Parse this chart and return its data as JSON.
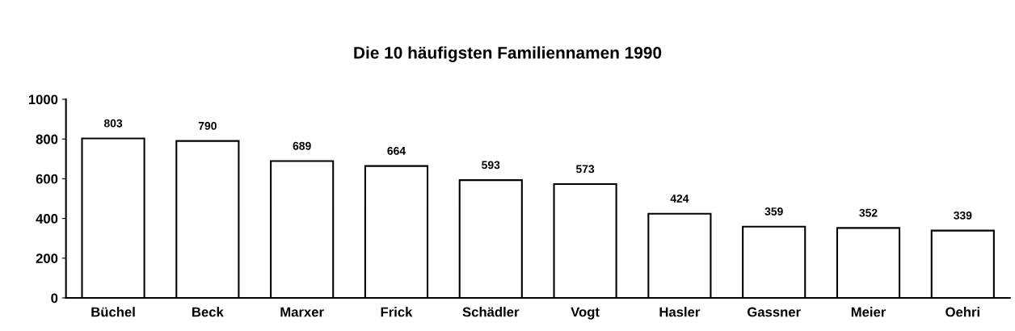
{
  "chart_data": {
    "type": "bar",
    "title": "Die 10 häufigsten Familiennamen 1990",
    "categories": [
      "Büchel",
      "Beck",
      "Marxer",
      "Frick",
      "Schädler",
      "Vogt",
      "Hasler",
      "Gassner",
      "Meier",
      "Oehri"
    ],
    "values": [
      803,
      790,
      689,
      664,
      593,
      573,
      424,
      359,
      352,
      339
    ],
    "color": "#ffffff",
    "ylim": [
      0,
      1000
    ],
    "yticks": [
      0,
      200,
      400,
      600,
      800,
      1000
    ],
    "grid": false,
    "data_labels": true
  }
}
